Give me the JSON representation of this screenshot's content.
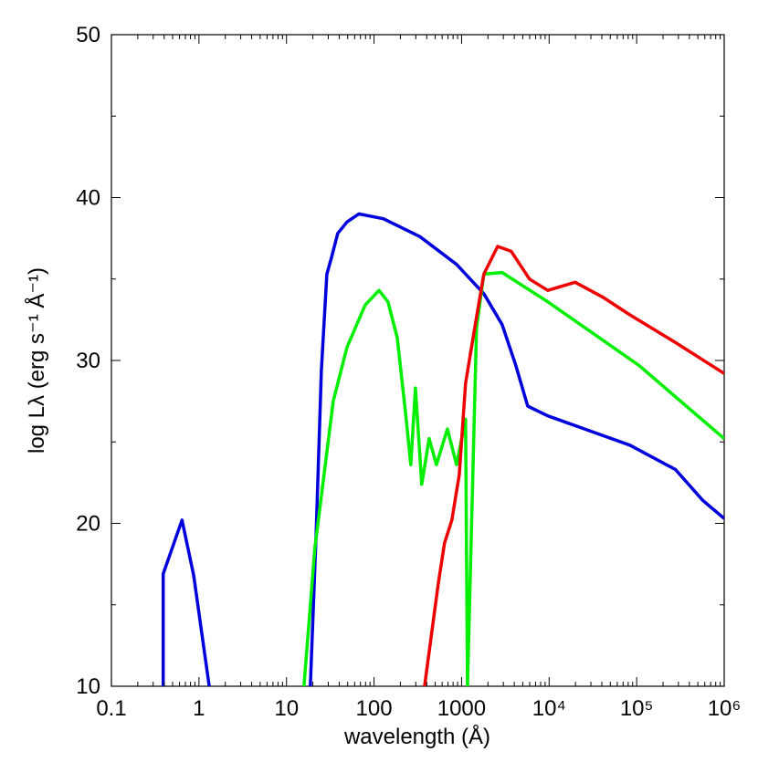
{
  "chart_data": {
    "type": "line",
    "xlabel": "wavelength (Å)",
    "ylabel": "log Lλ (erg s⁻¹ Å⁻¹)",
    "xscale": "log",
    "xlim": [
      0.1,
      1000000
    ],
    "ylim": [
      10,
      50
    ],
    "xticks": [
      0.1,
      1,
      10,
      100,
      1000,
      {
        "value": 10000,
        "label": "10⁴"
      },
      {
        "value": 100000,
        "label": "10⁵"
      },
      {
        "value": 1000000,
        "label": "10⁶"
      }
    ],
    "yticks": [
      10,
      20,
      30,
      40,
      50
    ],
    "series": [
      {
        "color": "#0000dd",
        "x": [
          0.39,
          0.39,
          0.64,
          0.87,
          1.31,
          null,
          18.7,
          21.7,
          25,
          28.9,
          32.6,
          38.5,
          49,
          67,
          128,
          334,
          875,
          1796,
          2904,
          4160,
          5690,
          9640,
          25200,
          83700,
          278000,
          571000,
          1000000
        ],
        "values": [
          10,
          16.9,
          20.2,
          16.8,
          10,
          null,
          10,
          19.1,
          29.4,
          35.3,
          36.3,
          37.8,
          38.5,
          39.0,
          38.7,
          37.6,
          35.9,
          34.1,
          32.2,
          29.7,
          27.2,
          26.6,
          25.8,
          24.8,
          23.3,
          21.4,
          20.3
        ]
      },
      {
        "color": "#00ee00",
        "x": [
          15.8,
          21.1,
          34.2,
          49,
          79,
          114,
          144,
          184,
          233,
          263,
          297,
          351,
          426,
          516,
          688,
          875,
          1112,
          1167,
          1483,
          1796,
          2904,
          9640,
          106400,
          1000000
        ],
        "values": [
          10,
          18.5,
          27.5,
          30.8,
          33.4,
          34.3,
          33.6,
          31.4,
          26.4,
          23.6,
          28.3,
          22.4,
          25.2,
          23.6,
          25.8,
          23.6,
          26.4,
          10,
          32,
          35.3,
          35.4,
          33.6,
          29.7,
          25.2
        ]
      },
      {
        "color": "#ee0000",
        "x": [
          378,
          541,
          640,
          775,
          940,
          1112,
          1413,
          1796,
          2578,
          3690,
          5970,
          9640,
          19800,
          40700,
          83700,
          278000,
          1000000
        ],
        "values": [
          10,
          16.3,
          18.8,
          20.2,
          23,
          28.6,
          32,
          35.3,
          37,
          36.7,
          35.0,
          34.3,
          34.8,
          33.9,
          32.8,
          31.1,
          29.2
        ]
      }
    ]
  }
}
